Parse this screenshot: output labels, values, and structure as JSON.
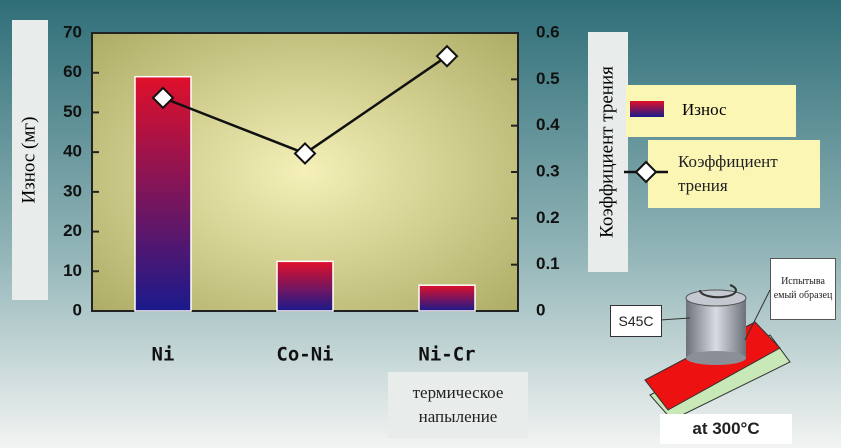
{
  "chart_data": {
    "type": "bar-line",
    "ylabel": "Износ (мг)",
    "y2label": "Коэффициент трения",
    "categories": [
      "Ni",
      "Co-Ni",
      "Ni-Cr"
    ],
    "series": [
      {
        "name": "Износ",
        "type": "bar",
        "color": "#e0102a",
        "values": [
          59,
          12.5,
          6.5
        ]
      },
      {
        "name": "Коэффициент трения",
        "type": "line",
        "axis": "y2",
        "color": "#111111",
        "values": [
          0.46,
          0.34,
          0.55
        ]
      }
    ],
    "ylim": [
      0,
      70
    ],
    "yticks": [
      0,
      10,
      20,
      30,
      40,
      50,
      60,
      70
    ],
    "y2lim": [
      0,
      0.6
    ],
    "y2ticks": [
      0,
      0.1,
      0.2,
      0.3,
      0.4,
      0.5,
      0.6
    ],
    "annotations": [
      "термическое напыление",
      "S45C",
      "Испытыва емый образец",
      "at 300°C"
    ]
  }
}
